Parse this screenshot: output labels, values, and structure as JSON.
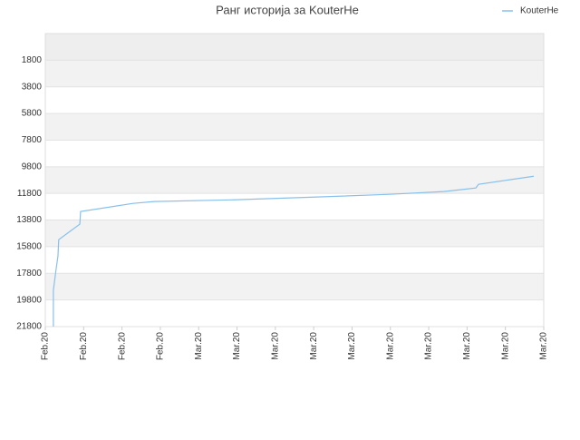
{
  "chart_data": {
    "type": "line",
    "title": "Ранг историја за KouterHe",
    "x": [
      0.21,
      0.21,
      0.28,
      0.33,
      0.35,
      0.9,
      0.92,
      2.29,
      2.84,
      4.92,
      7.09,
      8.98,
      10.4,
      11.23,
      11.3,
      12.74
    ],
    "series": [
      {
        "name": "KouterHe",
        "color": "#88c0ec",
        "values": [
          21800,
          19080,
          17520,
          16500,
          15270,
          14110,
          13160,
          12550,
          12410,
          12280,
          12070,
          11870,
          11660,
          11390,
          11120,
          10510
        ]
      }
    ],
    "xlim": [
      0,
      13
    ],
    "xticks": [
      {
        "value": 0,
        "label": "Feb.20"
      },
      {
        "value": 1,
        "label": "Feb.20"
      },
      {
        "value": 2,
        "label": "Feb.20"
      },
      {
        "value": 3,
        "label": "Feb.20"
      },
      {
        "value": 4,
        "label": "Mar.20"
      },
      {
        "value": 5,
        "label": "Mar.20"
      },
      {
        "value": 6,
        "label": "Mar.20"
      },
      {
        "value": 7,
        "label": "Mar.20"
      },
      {
        "value": 8,
        "label": "Mar.20"
      },
      {
        "value": 9,
        "label": "Mar.20"
      },
      {
        "value": 10,
        "label": "Mar.20"
      },
      {
        "value": 11,
        "label": "Mar.20"
      },
      {
        "value": 12,
        "label": "Mar.20"
      },
      {
        "value": 13,
        "label": "Mar.20"
      }
    ],
    "ylim": [
      21800,
      -200
    ],
    "yticks": [
      1800,
      3800,
      5800,
      7800,
      9800,
      11800,
      13800,
      15800,
      17800,
      19800,
      21800
    ],
    "grid": true,
    "legend": "top-right"
  }
}
